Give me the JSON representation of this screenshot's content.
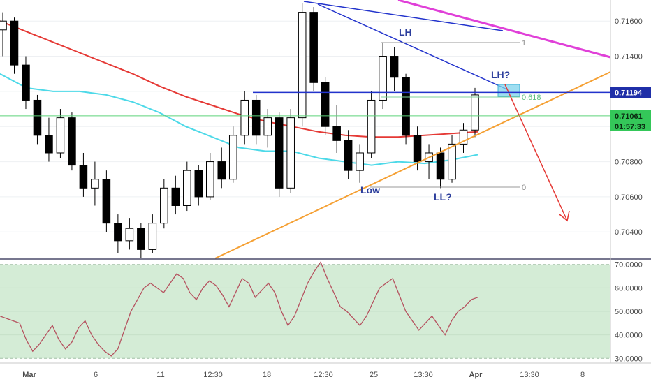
{
  "chart_data": [
    {
      "type": "candlestick",
      "y_ticks": [
        "0.71600",
        "0.71400",
        "0.71200",
        "0.71000",
        "0.70800",
        "0.70600",
        "0.70400"
      ],
      "ylim": [
        0.7025,
        0.7172
      ],
      "x_ticks": [
        "Mar",
        "6",
        "11",
        "12:30",
        "18",
        "12:30",
        "25",
        "13:30",
        "Apr",
        "13:30",
        "8"
      ],
      "price_tag": "0.71194",
      "current_tag": "0.71061",
      "countdown_tag": "01:57:33",
      "price_line": 0.71194,
      "current_line": 0.71061,
      "series": [
        {
          "ma": "red",
          "values": [
            0.716,
            0.7154,
            0.7148,
            0.7142,
            0.7136,
            0.713,
            0.7123,
            0.7117,
            0.7112,
            0.7107,
            0.7103,
            0.71,
            0.7097,
            0.7095,
            0.7094,
            0.7094,
            0.7095,
            0.7096,
            0.7097
          ]
        },
        {
          "ma": "cyan",
          "values": [
            0.713,
            0.7122,
            0.712,
            0.712,
            0.7118,
            0.7114,
            0.7108,
            0.71,
            0.7094,
            0.7088,
            0.7086,
            0.7086,
            0.7082,
            0.708,
            0.7078,
            0.708,
            0.7079,
            0.7081,
            0.7084
          ]
        }
      ],
      "candles": [
        [
          0.7155,
          0.7165,
          0.714,
          0.716
        ],
        [
          0.716,
          0.7162,
          0.713,
          0.7135
        ],
        [
          0.7135,
          0.714,
          0.711,
          0.7115
        ],
        [
          0.7115,
          0.7118,
          0.709,
          0.7095
        ],
        [
          0.7095,
          0.7105,
          0.708,
          0.7085
        ],
        [
          0.7085,
          0.711,
          0.7082,
          0.7105
        ],
        [
          0.7105,
          0.7108,
          0.7075,
          0.7078
        ],
        [
          0.7078,
          0.7085,
          0.706,
          0.7065
        ],
        [
          0.7065,
          0.708,
          0.7055,
          0.707
        ],
        [
          0.707,
          0.7075,
          0.704,
          0.7045
        ],
        [
          0.7045,
          0.705,
          0.7028,
          0.7035
        ],
        [
          0.7035,
          0.7048,
          0.703,
          0.7042
        ],
        [
          0.7042,
          0.7045,
          0.7025,
          0.703
        ],
        [
          0.703,
          0.705,
          0.7028,
          0.7045
        ],
        [
          0.7045,
          0.707,
          0.7042,
          0.7065
        ],
        [
          0.7065,
          0.7072,
          0.705,
          0.7055
        ],
        [
          0.7055,
          0.708,
          0.7052,
          0.7075
        ],
        [
          0.7075,
          0.7078,
          0.7055,
          0.706
        ],
        [
          0.706,
          0.7085,
          0.7058,
          0.708
        ],
        [
          0.708,
          0.7088,
          0.7065,
          0.707
        ],
        [
          0.707,
          0.71,
          0.7068,
          0.7095
        ],
        [
          0.7095,
          0.712,
          0.709,
          0.7115
        ],
        [
          0.7115,
          0.7118,
          0.709,
          0.7095
        ],
        [
          0.7095,
          0.711,
          0.7088,
          0.7105
        ],
        [
          0.7105,
          0.7108,
          0.706,
          0.7065
        ],
        [
          0.7065,
          0.711,
          0.7062,
          0.7105
        ],
        [
          0.7105,
          0.717,
          0.71,
          0.7165
        ],
        [
          0.7165,
          0.7168,
          0.712,
          0.7125
        ],
        [
          0.7125,
          0.7128,
          0.7095,
          0.71
        ],
        [
          0.71,
          0.7112,
          0.7085,
          0.7092
        ],
        [
          0.7092,
          0.7098,
          0.707,
          0.7075
        ],
        [
          0.7075,
          0.709,
          0.7068,
          0.7085
        ],
        [
          0.7085,
          0.712,
          0.7082,
          0.7115
        ],
        [
          0.7115,
          0.7148,
          0.711,
          0.714
        ],
        [
          0.714,
          0.7145,
          0.712,
          0.7128
        ],
        [
          0.7128,
          0.713,
          0.709,
          0.7095
        ],
        [
          0.7095,
          0.71,
          0.7075,
          0.708
        ],
        [
          0.708,
          0.709,
          0.707,
          0.7085
        ],
        [
          0.7085,
          0.7088,
          0.7065,
          0.707
        ],
        [
          0.707,
          0.7095,
          0.7068,
          0.709
        ],
        [
          0.709,
          0.7102,
          0.7085,
          0.7098
        ],
        [
          0.7098,
          0.7122,
          0.7094,
          0.7118
        ]
      ]
    },
    {
      "type": "line",
      "y_ticks": [
        "70.0000",
        "60.0000",
        "50.0000",
        "40.0000",
        "30.0000"
      ],
      "ylim": [
        28,
        72
      ],
      "values": [
        48,
        47,
        46,
        45,
        38,
        33,
        36,
        40,
        44,
        38,
        34,
        37,
        43,
        46,
        40,
        36,
        33,
        31,
        34,
        42,
        50,
        55,
        60,
        62,
        60,
        58,
        62,
        66,
        64,
        58,
        55,
        60,
        63,
        61,
        57,
        52,
        58,
        64,
        62,
        56,
        59,
        62,
        58,
        50,
        44,
        48,
        55,
        62,
        67,
        71,
        64,
        58,
        52,
        50,
        47,
        44,
        48,
        54,
        60,
        62,
        64,
        57,
        50,
        46,
        42,
        45,
        48,
        44,
        40,
        46,
        50,
        52,
        55,
        56
      ]
    }
  ],
  "annotations": {
    "lh": "LH",
    "lh2": "LH?",
    "low": "Low",
    "ll": "LL?",
    "fib_1": "1",
    "fib_618": "0.618",
    "fib_0": "0"
  },
  "colors": {
    "bull": "#ffffff",
    "bear": "#000000",
    "ma_red": "#e53935",
    "ma_cyan": "#4dd9e8",
    "trend_blue": "#2233cc",
    "trend_magenta": "#e040d8",
    "support_orange": "#f5a033",
    "arrow_red": "#e53935",
    "current_green": "#5dd37a",
    "rsi_line": "#b5525f",
    "rsi_bg": "#d4ecd6"
  }
}
